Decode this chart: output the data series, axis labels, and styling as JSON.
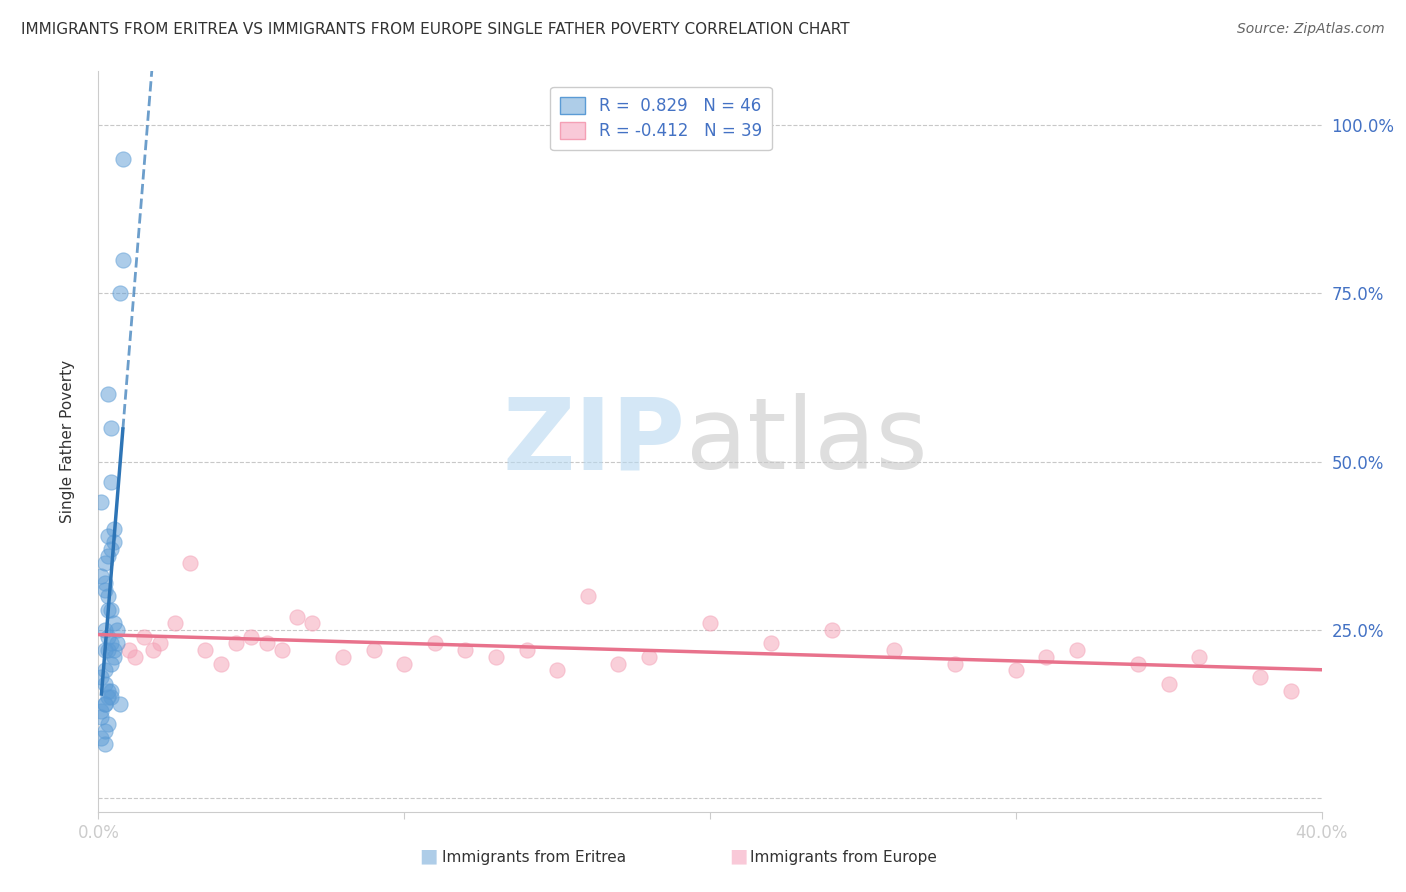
{
  "title": "IMMIGRANTS FROM ERITREA VS IMMIGRANTS FROM EUROPE SINGLE FATHER POVERTY CORRELATION CHART",
  "source": "Source: ZipAtlas.com",
  "ylabel": "Single Father Poverty",
  "yticks": [
    0.0,
    0.25,
    0.5,
    0.75,
    1.0
  ],
  "ytick_labels": [
    "",
    "25.0%",
    "50.0%",
    "75.0%",
    "100.0%"
  ],
  "xlim": [
    0,
    0.4
  ],
  "ylim": [
    -0.02,
    1.08
  ],
  "legend_R1": "R =  0.829",
  "legend_N1": "N = 46",
  "legend_R2": "R = -0.412",
  "legend_N2": "N = 39",
  "series1_name": "Immigrants from Eritrea",
  "series2_name": "Immigrants from Europe",
  "series1_color": "#5b9bd5",
  "series2_color": "#f4a0b5",
  "series1_line_color": "#2e75b6",
  "series2_line_color": "#e8728c",
  "grid_color": "#c8c8c8",
  "eritrea_x": [
    0.008,
    0.008,
    0.003,
    0.004,
    0.004,
    0.005,
    0.005,
    0.007,
    0.003,
    0.002,
    0.001,
    0.002,
    0.003,
    0.004,
    0.003,
    0.004,
    0.002,
    0.001,
    0.002,
    0.003,
    0.006,
    0.005,
    0.003,
    0.002,
    0.004,
    0.003,
    0.005,
    0.004,
    0.002,
    0.001,
    0.002,
    0.005,
    0.006,
    0.003,
    0.004,
    0.002,
    0.001,
    0.003,
    0.002,
    0.001,
    0.003,
    0.004,
    0.002,
    0.001,
    0.002,
    0.007
  ],
  "eritrea_y": [
    0.95,
    0.8,
    0.6,
    0.55,
    0.47,
    0.4,
    0.38,
    0.75,
    0.36,
    0.35,
    0.33,
    0.31,
    0.3,
    0.28,
    0.39,
    0.37,
    0.32,
    0.44,
    0.25,
    0.28,
    0.25,
    0.26,
    0.24,
    0.22,
    0.23,
    0.22,
    0.21,
    0.2,
    0.19,
    0.18,
    0.17,
    0.22,
    0.23,
    0.16,
    0.15,
    0.14,
    0.13,
    0.15,
    0.14,
    0.12,
    0.11,
    0.16,
    0.1,
    0.09,
    0.08,
    0.14
  ],
  "europe_x": [
    0.01,
    0.015,
    0.02,
    0.025,
    0.03,
    0.035,
    0.04,
    0.05,
    0.055,
    0.06,
    0.065,
    0.07,
    0.08,
    0.09,
    0.1,
    0.11,
    0.12,
    0.13,
    0.14,
    0.15,
    0.16,
    0.17,
    0.18,
    0.2,
    0.22,
    0.24,
    0.26,
    0.28,
    0.3,
    0.31,
    0.32,
    0.34,
    0.36,
    0.38,
    0.39,
    0.012,
    0.018,
    0.045,
    0.35
  ],
  "europe_y": [
    0.22,
    0.24,
    0.23,
    0.26,
    0.35,
    0.22,
    0.2,
    0.24,
    0.23,
    0.22,
    0.27,
    0.26,
    0.21,
    0.22,
    0.2,
    0.23,
    0.22,
    0.21,
    0.22,
    0.19,
    0.3,
    0.2,
    0.21,
    0.26,
    0.23,
    0.25,
    0.22,
    0.2,
    0.19,
    0.21,
    0.22,
    0.2,
    0.21,
    0.18,
    0.16,
    0.21,
    0.22,
    0.23,
    0.17
  ]
}
